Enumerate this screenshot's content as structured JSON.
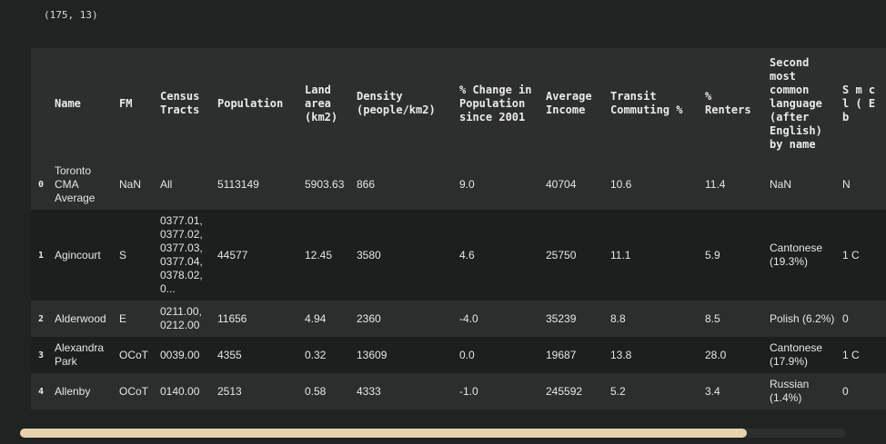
{
  "output": {
    "shape_text": "(175, 13)"
  },
  "table": {
    "headers": [
      "",
      "Name",
      "FM",
      "Census Tracts",
      "Population",
      "Land area (km2)",
      "Density (people/km2)",
      "% Change in Population since 2001",
      "Average Income",
      "Transit Commuting %",
      "% Renters",
      "Second most common language (after English) by name",
      "S m c l ( E b"
    ],
    "rows": [
      {
        "index": "0",
        "cells": [
          "Toronto CMA Average",
          "NaN",
          "All",
          "5113149",
          "5903.63",
          "866",
          "9.0",
          "40704",
          "10.6",
          "11.4",
          "NaN",
          "N"
        ]
      },
      {
        "index": "1",
        "cells": [
          "Agincourt",
          "S",
          "0377.01, 0377.02, 0377.03, 0377.04, 0378.02, 0...",
          "44577",
          "12.45",
          "3580",
          "4.6",
          "25750",
          "11.1",
          "5.9",
          "Cantonese (19.3%)",
          "1 C"
        ]
      },
      {
        "index": "2",
        "cells": [
          "Alderwood",
          "E",
          "0211.00, 0212.00",
          "11656",
          "4.94",
          "2360",
          "-4.0",
          "35239",
          "8.8",
          "8.5",
          "Polish (6.2%)",
          "0"
        ]
      },
      {
        "index": "3",
        "cells": [
          "Alexandra Park",
          "OCoT",
          "0039.00",
          "4355",
          "0.32",
          "13609",
          "0.0",
          "19687",
          "13.8",
          "28.0",
          "Cantonese (17.9%)",
          "1 C"
        ]
      },
      {
        "index": "4",
        "cells": [
          "Allenby",
          "OCoT",
          "0140.00",
          "2513",
          "0.58",
          "4333",
          "-1.0",
          "245592",
          "5.2",
          "3.4",
          "Russian (1.4%)",
          "0"
        ]
      }
    ]
  },
  "scrollbar": {
    "orientation": "horizontal"
  }
}
